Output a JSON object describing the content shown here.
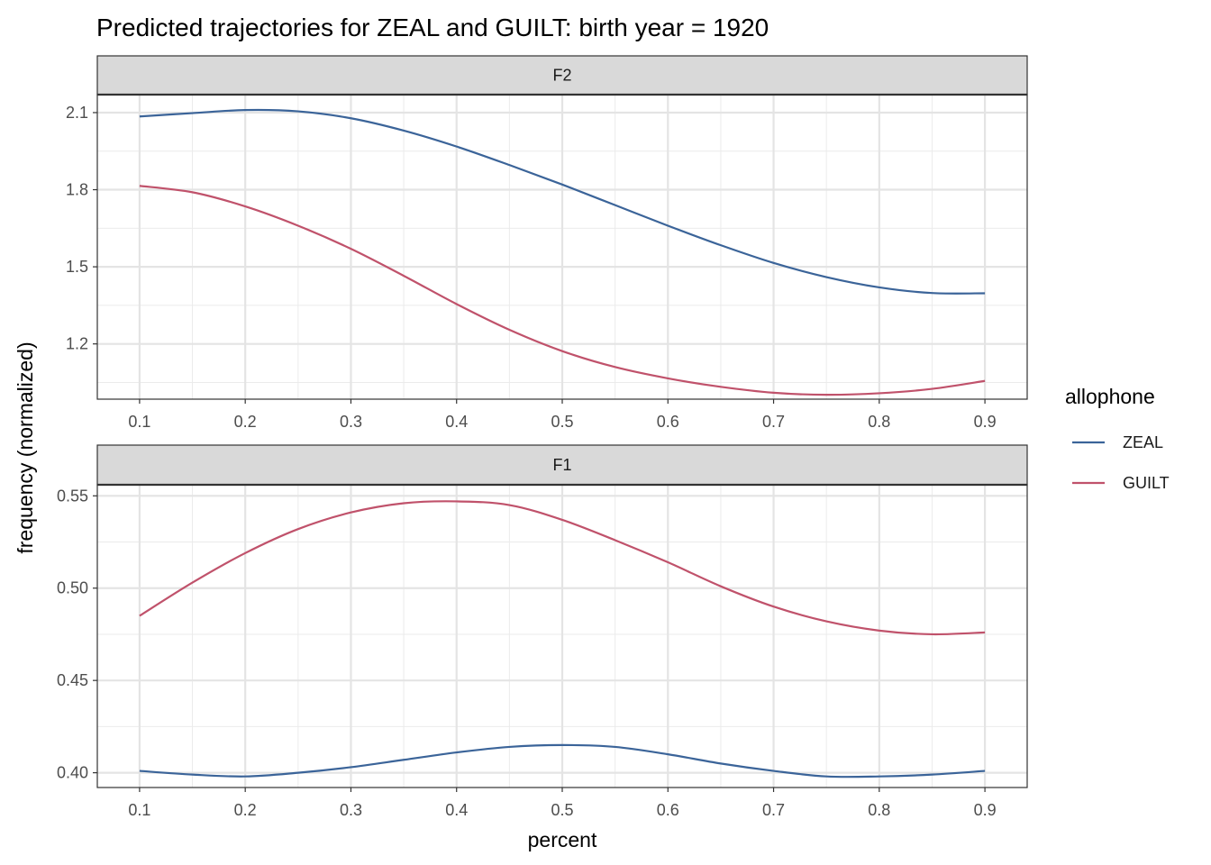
{
  "chart_data": {
    "type": "line",
    "title": "Predicted trajectories for ZEAL and GUILT: birth year = 1920",
    "xlabel": "percent",
    "ylabel": "frequency (normalized)",
    "legend": {
      "title": "allophone",
      "placement": "right",
      "entries": [
        {
          "name": "ZEAL",
          "color": "#3b6499"
        },
        {
          "name": "GUILT",
          "color": "#c0526b"
        }
      ]
    },
    "x": [
      0.1,
      0.15,
      0.2,
      0.25,
      0.3,
      0.35,
      0.4,
      0.45,
      0.5,
      0.55,
      0.6,
      0.65,
      0.7,
      0.75,
      0.8,
      0.85,
      0.9
    ],
    "panels": [
      {
        "strip": "F2",
        "ylim": [
          0.985,
          2.17
        ],
        "yticks": [
          "1.2",
          "1.5",
          "1.8",
          "2.1"
        ],
        "ytick_values": [
          1.2,
          1.5,
          1.8,
          2.1
        ],
        "xticks": [
          "0.1",
          "0.2",
          "0.3",
          "0.4",
          "0.5",
          "0.6",
          "0.7",
          "0.8",
          "0.9"
        ],
        "grid": true,
        "series": [
          {
            "name": "ZEAL",
            "color": "#3b6499",
            "values": [
              2.085,
              2.098,
              2.11,
              2.105,
              2.078,
              2.03,
              1.968,
              1.896,
              1.82,
              1.74,
              1.66,
              1.584,
              1.515,
              1.46,
              1.42,
              1.398,
              1.397
            ]
          },
          {
            "name": "GUILT",
            "color": "#c0526b",
            "values": [
              1.815,
              1.79,
              1.735,
              1.66,
              1.57,
              1.465,
              1.355,
              1.255,
              1.172,
              1.11,
              1.066,
              1.033,
              1.01,
              1.002,
              1.008,
              1.025,
              1.056
            ]
          }
        ]
      },
      {
        "strip": "F1",
        "ylim": [
          0.392,
          0.556
        ],
        "yticks": [
          "0.40",
          "0.45",
          "0.50",
          "0.55"
        ],
        "ytick_values": [
          0.4,
          0.45,
          0.5,
          0.55
        ],
        "xticks": [
          "0.1",
          "0.2",
          "0.3",
          "0.4",
          "0.5",
          "0.6",
          "0.7",
          "0.8",
          "0.9"
        ],
        "grid": true,
        "series": [
          {
            "name": "ZEAL",
            "color": "#3b6499",
            "values": [
              0.401,
              0.399,
              0.398,
              0.4,
              0.403,
              0.407,
              0.411,
              0.414,
              0.415,
              0.414,
              0.41,
              0.405,
              0.401,
              0.398,
              0.398,
              0.399,
              0.401
            ]
          },
          {
            "name": "GUILT",
            "color": "#c0526b",
            "values": [
              0.485,
              0.503,
              0.519,
              0.532,
              0.541,
              0.546,
              0.547,
              0.545,
              0.537,
              0.526,
              0.514,
              0.501,
              0.49,
              0.482,
              0.477,
              0.475,
              0.476
            ]
          }
        ]
      }
    ]
  }
}
